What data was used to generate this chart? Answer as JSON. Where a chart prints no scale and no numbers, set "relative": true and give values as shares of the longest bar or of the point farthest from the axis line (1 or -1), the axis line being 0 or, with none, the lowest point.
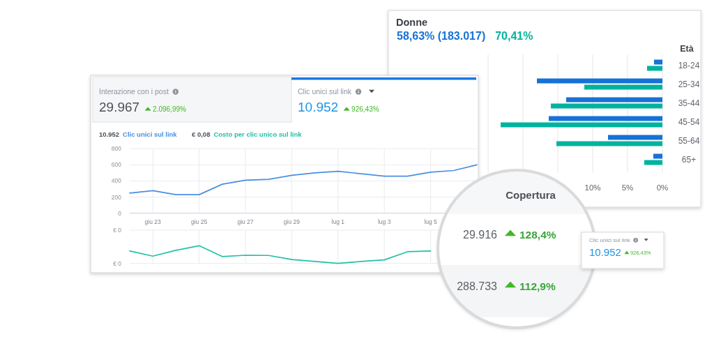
{
  "chart_data": [
    {
      "type": "bar",
      "orientation": "horizontal",
      "title": "Donne",
      "ylabel": "Età",
      "categories": [
        "18-24",
        "25-34",
        "35-44",
        "45-54",
        "55-64",
        "65+"
      ],
      "series": [
        {
          "name": "58,63% (183.017)",
          "color": "#1672d6",
          "values": [
            1.2,
            18.0,
            13.8,
            16.3,
            7.8,
            1.3
          ]
        },
        {
          "name": "70,41%",
          "color": "#00b39f",
          "values": [
            2.2,
            11.2,
            16.0,
            23.2,
            15.2,
            2.6
          ]
        }
      ],
      "xlim": [
        25,
        0
      ],
      "xticks": [
        {
          "value": 0,
          "label": "0%"
        },
        {
          "value": 5,
          "label": "5%"
        },
        {
          "value": 10,
          "label": "10%"
        },
        {
          "value": 15,
          "label": null
        },
        {
          "value": 20,
          "label": null
        },
        {
          "value": 25,
          "label": null
        }
      ],
      "grid": "x",
      "legend": "top left"
    },
    {
      "type": "other",
      "title": "Interazione con i post",
      "annotations": [
        "29.967",
        "2.096,99%"
      ]
    },
    {
      "type": "other",
      "title": "Clic unici sul link",
      "annotations": [
        "10.952",
        "926,43%"
      ]
    },
    {
      "type": "line",
      "categories": [
        null,
        "giu 23",
        null,
        "giu 25",
        null,
        "giu 27",
        null,
        "giu 29",
        null,
        "lug 1",
        null,
        "lug 3",
        null,
        "lug 5",
        null,
        null
      ],
      "series": [
        {
          "name": "Clic unici sul link",
          "color": "#4a8fe0",
          "values": [
            250,
            280,
            230,
            230,
            360,
            410,
            420,
            470,
            500,
            520,
            490,
            460,
            460,
            510,
            530,
            600
          ]
        }
      ],
      "ylim": [
        0,
        800
      ],
      "yticks": [
        0,
        200,
        400,
        600,
        800
      ],
      "grid": true,
      "legend": "top left",
      "annotations": [
        "10.952"
      ]
    },
    {
      "type": "line",
      "categories": [
        null,
        null,
        null,
        null,
        null,
        null,
        null,
        null,
        null,
        null,
        null,
        null,
        null,
        null,
        null,
        null
      ],
      "series": [
        {
          "name": "Costo per clic unico sul link",
          "color": "#22c0a8",
          "values": [
            0.7,
            0.41,
            0.74,
            1,
            0.39,
            0.46,
            0.45,
            0.22,
            0.11,
            0,
            0.11,
            0.2,
            0.66,
            0.7,
            null,
            null
          ]
        }
      ],
      "relative": true,
      "grid": true,
      "legend": "top left",
      "annotations": [
        "€ 0,08",
        "€ 0",
        "€ 0"
      ]
    },
    {
      "type": "other",
      "title": "Copertura",
      "annotations": [
        "29.916",
        "128,4%",
        "288.733",
        "112,9%"
      ]
    },
    {
      "type": "other",
      "title": "Clic unici sul link",
      "annotations": [
        "10.952",
        "926,43%"
      ]
    }
  ]
}
